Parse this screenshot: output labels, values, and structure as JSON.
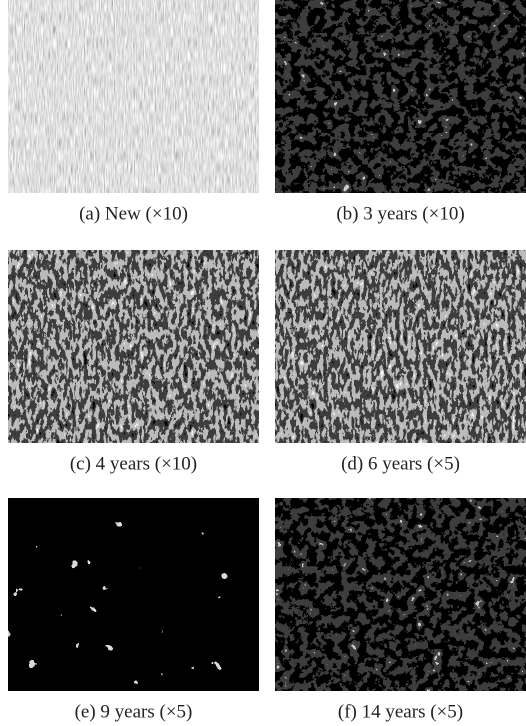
{
  "figure": {
    "panels": [
      {
        "caption": "(a) New (×10)"
      },
      {
        "caption": "(b) 3 years (×10)"
      },
      {
        "caption": "(c) 4 years (×10)"
      },
      {
        "caption": "(d) 6 years (×5)"
      },
      {
        "caption": "(e) 9 years (×5)"
      },
      {
        "caption": "(f) 14 years (×5)"
      }
    ]
  }
}
